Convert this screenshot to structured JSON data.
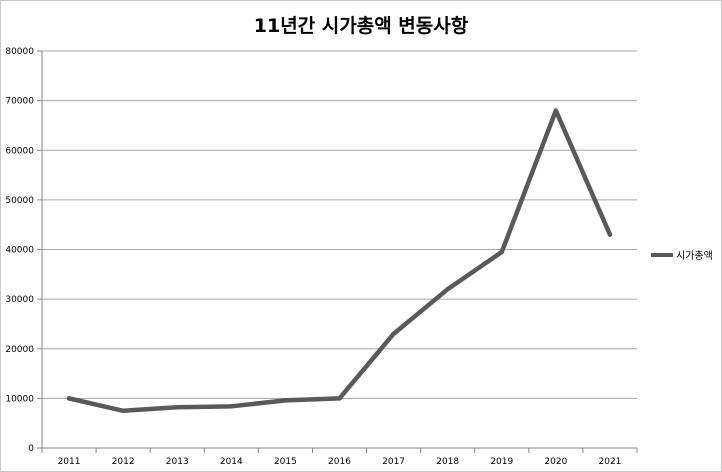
{
  "chart_data": {
    "type": "line",
    "title": "11년간 시가총액 변동사항",
    "xlabel": "",
    "ylabel": "",
    "categories": [
      "2011",
      "2012",
      "2013",
      "2014",
      "2015",
      "2016",
      "2017",
      "2018",
      "2019",
      "2020",
      "2021"
    ],
    "series": [
      {
        "name": "시가총액",
        "values": [
          10000,
          7500,
          8200,
          8400,
          9600,
          10000,
          23000,
          32000,
          39500,
          68000,
          43000
        ]
      }
    ],
    "ylim": [
      0,
      80000
    ],
    "yticks": [
      "0",
      "10000",
      "20000",
      "30000",
      "40000",
      "50000",
      "60000",
      "70000",
      "80000"
    ],
    "grid": true,
    "legend_position": "right",
    "colors": {
      "line": "#595959",
      "grid": "#a6a6a6",
      "axis": "#868686"
    }
  }
}
